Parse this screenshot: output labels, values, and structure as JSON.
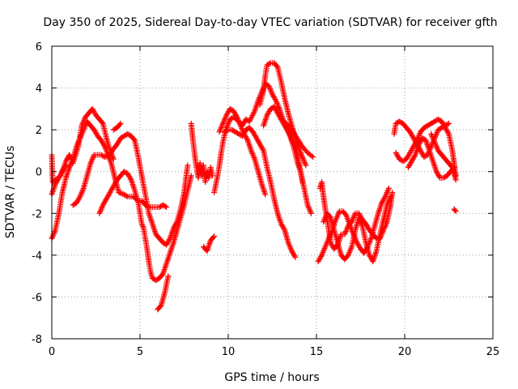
{
  "chart_data": {
    "type": "scatter",
    "title": "Day 350 of 2025, Sidereal Day-to-day VTEC variation (SDTVAR) for receiver gfth",
    "xlabel": "GPS time / hours",
    "ylabel": "SDTVAR / TECUs",
    "xlim": [
      0,
      25
    ],
    "ylim": [
      -8,
      6
    ],
    "xticks": [
      0,
      5,
      10,
      15,
      20,
      25
    ],
    "yticks": [
      -8,
      -6,
      -4,
      -2,
      0,
      2,
      4,
      6
    ],
    "marker": "plus",
    "color": "#ff0000",
    "grid": true,
    "traces": [
      [
        [
          0.0,
          0.8
        ],
        [
          0.05,
          -0.5
        ],
        [
          0.2,
          -0.4
        ],
        [
          0.5,
          -0.2
        ],
        [
          0.8,
          0.5
        ],
        [
          1.0,
          0.8
        ],
        [
          1.2,
          0.4
        ],
        [
          1.5,
          1.2
        ],
        [
          1.7,
          2.2
        ],
        [
          1.9,
          2.6
        ],
        [
          2.1,
          2.8
        ],
        [
          2.3,
          3.0
        ],
        [
          2.5,
          2.7
        ],
        [
          2.7,
          2.5
        ],
        [
          2.9,
          2.3
        ],
        [
          3.1,
          1.6
        ],
        [
          3.3,
          1.0
        ],
        [
          3.5,
          0.6
        ]
      ],
      [
        [
          0.0,
          -3.2
        ],
        [
          0.2,
          -2.8
        ],
        [
          0.4,
          -2.0
        ],
        [
          0.6,
          -1.0
        ],
        [
          0.8,
          -0.3
        ],
        [
          1.0,
          0.2
        ],
        [
          1.2,
          0.6
        ],
        [
          1.4,
          1.2
        ],
        [
          1.6,
          1.6
        ],
        [
          1.8,
          2.0
        ],
        [
          2.0,
          2.4
        ],
        [
          2.2,
          2.2
        ],
        [
          2.4,
          2.0
        ],
        [
          2.6,
          1.7
        ],
        [
          2.8,
          1.5
        ],
        [
          3.0,
          1.2
        ],
        [
          3.2,
          0.8
        ],
        [
          3.4,
          0.3
        ],
        [
          3.6,
          -0.4
        ],
        [
          3.8,
          -1.0
        ],
        [
          4.1,
          -1.1
        ],
        [
          4.3,
          -1.2
        ],
        [
          4.6,
          -1.2
        ],
        [
          4.9,
          -1.4
        ],
        [
          5.1,
          -1.4
        ],
        [
          5.3,
          -1.6
        ],
        [
          5.5,
          -1.7
        ],
        [
          5.7,
          -1.7
        ],
        [
          5.9,
          -1.7
        ],
        [
          6.1,
          -1.7
        ],
        [
          6.3,
          -1.6
        ],
        [
          6.5,
          -1.7
        ]
      ],
      [
        [
          0.0,
          -1.1
        ],
        [
          0.2,
          -0.6
        ],
        [
          0.4,
          -0.3
        ],
        [
          0.6,
          0.0
        ],
        [
          0.8,
          0.3
        ]
      ],
      [
        [
          1.2,
          -1.6
        ],
        [
          1.4,
          -1.5
        ],
        [
          1.6,
          -1.2
        ],
        [
          1.8,
          -0.8
        ],
        [
          2.0,
          -0.2
        ],
        [
          2.2,
          0.4
        ],
        [
          2.4,
          0.8
        ],
        [
          2.6,
          0.8
        ],
        [
          2.8,
          0.8
        ],
        [
          3.0,
          0.7
        ],
        [
          3.3,
          0.8
        ],
        [
          3.5,
          1.1
        ],
        [
          3.7,
          1.3
        ],
        [
          3.9,
          1.6
        ],
        [
          4.1,
          1.7
        ],
        [
          4.3,
          1.8
        ],
        [
          4.5,
          1.7
        ],
        [
          4.7,
          1.5
        ],
        [
          4.9,
          0.7
        ],
        [
          5.1,
          -0.2
        ],
        [
          5.3,
          -1.1
        ],
        [
          5.5,
          -2.0
        ],
        [
          5.7,
          -2.5
        ],
        [
          5.9,
          -3.0
        ],
        [
          6.1,
          -3.2
        ],
        [
          6.3,
          -3.4
        ],
        [
          6.5,
          -3.5
        ],
        [
          6.7,
          -3.2
        ],
        [
          6.9,
          -2.7
        ],
        [
          7.1,
          -2.4
        ],
        [
          7.3,
          -1.8
        ],
        [
          7.5,
          -1.0
        ],
        [
          7.7,
          0.3
        ]
      ],
      [
        [
          2.7,
          -2.0
        ],
        [
          2.9,
          -1.6
        ],
        [
          3.1,
          -1.3
        ],
        [
          3.3,
          -1.0
        ],
        [
          3.5,
          -0.7
        ],
        [
          3.7,
          -0.4
        ],
        [
          3.9,
          -0.2
        ],
        [
          4.1,
          0.0
        ],
        [
          4.3,
          -0.1
        ],
        [
          4.5,
          -0.4
        ],
        [
          4.7,
          -0.9
        ],
        [
          4.9,
          -1.5
        ],
        [
          5.0,
          -2.0
        ],
        [
          5.1,
          -2.5
        ],
        [
          5.2,
          -2.7
        ],
        [
          5.3,
          -3.2
        ],
        [
          5.4,
          -3.7
        ],
        [
          5.5,
          -4.3
        ],
        [
          5.6,
          -4.8
        ],
        [
          5.7,
          -5.1
        ],
        [
          5.9,
          -5.2
        ],
        [
          6.1,
          -5.1
        ],
        [
          6.3,
          -4.9
        ],
        [
          6.5,
          -4.4
        ],
        [
          6.7,
          -3.9
        ],
        [
          6.9,
          -3.4
        ],
        [
          7.1,
          -2.8
        ],
        [
          7.3,
          -2.2
        ],
        [
          7.5,
          -1.6
        ],
        [
          7.7,
          -0.9
        ],
        [
          7.9,
          -0.2
        ]
      ],
      [
        [
          3.5,
          2.0
        ],
        [
          3.7,
          2.1
        ],
        [
          3.9,
          2.3
        ]
      ],
      [
        [
          6.0,
          -6.6
        ],
        [
          6.2,
          -6.4
        ],
        [
          6.4,
          -5.8
        ],
        [
          6.6,
          -5.0
        ]
      ],
      [
        [
          7.9,
          2.3
        ],
        [
          8.0,
          1.5
        ],
        [
          8.1,
          0.8
        ],
        [
          8.2,
          0.2
        ],
        [
          8.3,
          -0.3
        ],
        [
          8.4,
          0.4
        ],
        [
          8.5,
          -0.2
        ],
        [
          8.6,
          0.3
        ],
        [
          8.7,
          -0.5
        ],
        [
          8.8,
          0.0
        ],
        [
          8.9,
          -0.3
        ],
        [
          9.0,
          0.2
        ],
        [
          9.1,
          -0.2
        ]
      ],
      [
        [
          8.6,
          -3.6
        ],
        [
          8.8,
          -3.8
        ],
        [
          9.0,
          -3.3
        ],
        [
          9.2,
          -3.1
        ]
      ],
      [
        [
          9.2,
          -1.0
        ],
        [
          9.3,
          -0.6
        ],
        [
          9.4,
          -0.2
        ],
        [
          9.5,
          0.3
        ],
        [
          9.6,
          0.9
        ],
        [
          9.7,
          1.4
        ],
        [
          9.8,
          1.8
        ],
        [
          9.9,
          2.1
        ],
        [
          10.1,
          2.5
        ],
        [
          10.3,
          2.6
        ],
        [
          10.6,
          2.4
        ],
        [
          10.8,
          2.2
        ],
        [
          11.0,
          2.5
        ],
        [
          11.2,
          2.4
        ],
        [
          11.5,
          2.9
        ],
        [
          11.7,
          3.4
        ],
        [
          11.9,
          3.8
        ],
        [
          12.1,
          4.2
        ],
        [
          12.3,
          4.1
        ],
        [
          12.5,
          3.7
        ],
        [
          12.7,
          3.4
        ],
        [
          12.9,
          3.0
        ],
        [
          13.1,
          2.5
        ],
        [
          13.3,
          2.1
        ],
        [
          13.5,
          1.7
        ],
        [
          13.7,
          1.2
        ],
        [
          13.9,
          0.5
        ],
        [
          14.1,
          0.0
        ],
        [
          14.3,
          -0.8
        ],
        [
          14.5,
          -1.6
        ],
        [
          14.7,
          -2.0
        ]
      ],
      [
        [
          9.5,
          1.9
        ],
        [
          9.7,
          2.3
        ],
        [
          9.9,
          2.7
        ],
        [
          10.1,
          3.0
        ],
        [
          10.3,
          2.9
        ],
        [
          10.5,
          2.6
        ],
        [
          10.7,
          2.2
        ],
        [
          10.9,
          1.8
        ],
        [
          11.1,
          1.5
        ],
        [
          11.3,
          1.0
        ],
        [
          11.5,
          0.6
        ],
        [
          11.7,
          0.0
        ],
        [
          11.9,
          -0.6
        ],
        [
          12.1,
          -1.1
        ]
      ],
      [
        [
          9.8,
          1.9
        ],
        [
          10.0,
          2.0
        ],
        [
          10.2,
          2.0
        ],
        [
          10.4,
          1.9
        ],
        [
          10.6,
          1.8
        ],
        [
          10.8,
          1.7
        ],
        [
          11.0,
          2.0
        ],
        [
          11.2,
          2.1
        ],
        [
          11.4,
          1.9
        ],
        [
          11.6,
          1.6
        ],
        [
          11.8,
          1.3
        ],
        [
          12.0,
          1.0
        ],
        [
          12.2,
          0.2
        ],
        [
          12.4,
          -0.5
        ],
        [
          12.6,
          -1.3
        ],
        [
          12.8,
          -2.0
        ],
        [
          13.0,
          -2.5
        ],
        [
          13.2,
          -2.8
        ],
        [
          13.4,
          -3.4
        ],
        [
          13.6,
          -3.8
        ],
        [
          13.8,
          -4.1
        ]
      ],
      [
        [
          11.8,
          3.2
        ],
        [
          12.0,
          3.9
        ],
        [
          12.1,
          4.6
        ],
        [
          12.2,
          5.1
        ],
        [
          12.4,
          5.2
        ],
        [
          12.6,
          5.2
        ],
        [
          12.8,
          5.0
        ],
        [
          13.0,
          4.3
        ],
        [
          13.2,
          3.5
        ],
        [
          13.4,
          2.8
        ],
        [
          13.6,
          2.2
        ],
        [
          13.8,
          1.6
        ],
        [
          14.0,
          1.1
        ],
        [
          14.2,
          0.7
        ],
        [
          14.4,
          0.3
        ]
      ],
      [
        [
          12.0,
          2.2
        ],
        [
          12.2,
          2.7
        ],
        [
          12.4,
          3.0
        ],
        [
          12.6,
          3.1
        ],
        [
          12.8,
          2.8
        ],
        [
          13.0,
          2.5
        ],
        [
          13.2,
          2.2
        ],
        [
          13.4,
          1.9
        ],
        [
          13.6,
          1.6
        ],
        [
          13.8,
          1.2
        ],
        [
          14.0,
          0.5
        ],
        [
          14.2,
          -0.5
        ]
      ],
      [
        [
          13.0,
          2.5
        ],
        [
          13.3,
          2.3
        ],
        [
          13.6,
          2.0
        ],
        [
          13.9,
          1.6
        ],
        [
          14.2,
          1.2
        ],
        [
          14.5,
          0.9
        ],
        [
          14.8,
          0.7
        ]
      ],
      [
        [
          15.2,
          -0.8
        ],
        [
          15.3,
          -0.5
        ],
        [
          15.4,
          -1.2
        ],
        [
          15.5,
          -1.8
        ],
        [
          15.6,
          -2.3
        ],
        [
          15.7,
          -2.8
        ],
        [
          15.8,
          -3.4
        ],
        [
          16.0,
          -3.7
        ],
        [
          16.2,
          -3.5
        ],
        [
          16.4,
          -3.0
        ],
        [
          16.6,
          -3.0
        ],
        [
          16.8,
          -2.6
        ],
        [
          17.0,
          -2.4
        ],
        [
          17.2,
          -2.0
        ],
        [
          17.4,
          -2.0
        ],
        [
          17.6,
          -2.3
        ],
        [
          17.8,
          -2.5
        ],
        [
          18.0,
          -2.8
        ],
        [
          18.2,
          -3.0
        ],
        [
          18.4,
          -3.2
        ],
        [
          18.6,
          -3.2
        ],
        [
          18.8,
          -2.8
        ],
        [
          19.0,
          -2.4
        ],
        [
          19.2,
          -1.6
        ],
        [
          19.3,
          -1.0
        ]
      ],
      [
        [
          15.1,
          -4.3
        ],
        [
          15.3,
          -4.0
        ],
        [
          15.5,
          -3.6
        ],
        [
          15.7,
          -3.2
        ],
        [
          15.9,
          -2.8
        ],
        [
          16.1,
          -2.3
        ],
        [
          16.3,
          -1.9
        ],
        [
          16.5,
          -1.9
        ],
        [
          16.7,
          -2.1
        ],
        [
          16.9,
          -2.6
        ],
        [
          17.1,
          -3.0
        ],
        [
          17.3,
          -3.4
        ],
        [
          17.5,
          -3.7
        ],
        [
          17.7,
          -3.9
        ],
        [
          17.9,
          -3.6
        ],
        [
          18.1,
          -3.2
        ],
        [
          18.3,
          -2.6
        ],
        [
          18.5,
          -2.0
        ],
        [
          18.7,
          -1.5
        ],
        [
          18.9,
          -1.2
        ],
        [
          19.1,
          -0.8
        ]
      ],
      [
        [
          15.4,
          -2.4
        ],
        [
          15.6,
          -2.0
        ],
        [
          15.8,
          -2.2
        ],
        [
          16.0,
          -2.8
        ],
        [
          16.2,
          -3.4
        ],
        [
          16.4,
          -4.0
        ],
        [
          16.6,
          -4.2
        ],
        [
          16.8,
          -4.0
        ],
        [
          17.0,
          -3.6
        ],
        [
          17.2,
          -2.8
        ],
        [
          17.4,
          -2.2
        ],
        [
          17.6,
          -2.6
        ],
        [
          17.8,
          -3.4
        ],
        [
          18.0,
          -4.0
        ],
        [
          18.2,
          -4.3
        ],
        [
          18.4,
          -3.8
        ],
        [
          18.6,
          -3.0
        ],
        [
          18.8,
          -2.3
        ],
        [
          19.0,
          -1.6
        ],
        [
          19.2,
          -1.2
        ]
      ],
      [
        [
          19.4,
          1.8
        ],
        [
          19.5,
          2.3
        ],
        [
          19.7,
          2.4
        ],
        [
          19.9,
          2.3
        ],
        [
          20.1,
          2.1
        ],
        [
          20.3,
          1.9
        ],
        [
          20.5,
          1.6
        ],
        [
          20.7,
          1.3
        ],
        [
          20.9,
          1.0
        ],
        [
          21.1,
          0.7
        ],
        [
          21.3,
          0.8
        ],
        [
          21.5,
          1.2
        ],
        [
          21.7,
          1.6
        ],
        [
          21.9,
          2.0
        ],
        [
          22.1,
          2.1
        ],
        [
          22.3,
          2.2
        ],
        [
          22.5,
          2.3
        ]
      ],
      [
        [
          19.5,
          0.9
        ],
        [
          19.7,
          0.6
        ],
        [
          19.9,
          0.5
        ],
        [
          20.1,
          0.6
        ],
        [
          20.3,
          0.9
        ],
        [
          20.5,
          1.2
        ],
        [
          20.7,
          1.5
        ],
        [
          20.9,
          1.9
        ],
        [
          21.1,
          2.1
        ],
        [
          21.3,
          2.2
        ],
        [
          21.5,
          2.3
        ],
        [
          21.7,
          2.4
        ],
        [
          21.9,
          2.5
        ],
        [
          22.1,
          2.4
        ],
        [
          22.3,
          2.1
        ],
        [
          22.5,
          1.8
        ],
        [
          22.7,
          1.0
        ],
        [
          22.8,
          0.4
        ],
        [
          22.9,
          -0.2
        ]
      ],
      [
        [
          20.2,
          0.2
        ],
        [
          20.4,
          0.5
        ],
        [
          20.6,
          0.8
        ],
        [
          20.8,
          1.3
        ],
        [
          21.0,
          1.6
        ],
        [
          21.2,
          1.5
        ],
        [
          21.4,
          1.0
        ],
        [
          21.6,
          0.5
        ],
        [
          21.8,
          0.0
        ],
        [
          22.0,
          -0.3
        ],
        [
          22.2,
          -0.3
        ],
        [
          22.4,
          -0.2
        ],
        [
          22.6,
          0.0
        ],
        [
          22.8,
          0.2
        ]
      ],
      [
        [
          21.5,
          1.8
        ],
        [
          21.7,
          1.4
        ],
        [
          21.9,
          1.0
        ],
        [
          22.1,
          0.8
        ],
        [
          22.3,
          0.6
        ],
        [
          22.5,
          0.4
        ],
        [
          22.7,
          0.2
        ],
        [
          22.9,
          -0.4
        ]
      ],
      [
        [
          22.8,
          -1.8
        ],
        [
          22.9,
          -1.9
        ]
      ]
    ]
  }
}
